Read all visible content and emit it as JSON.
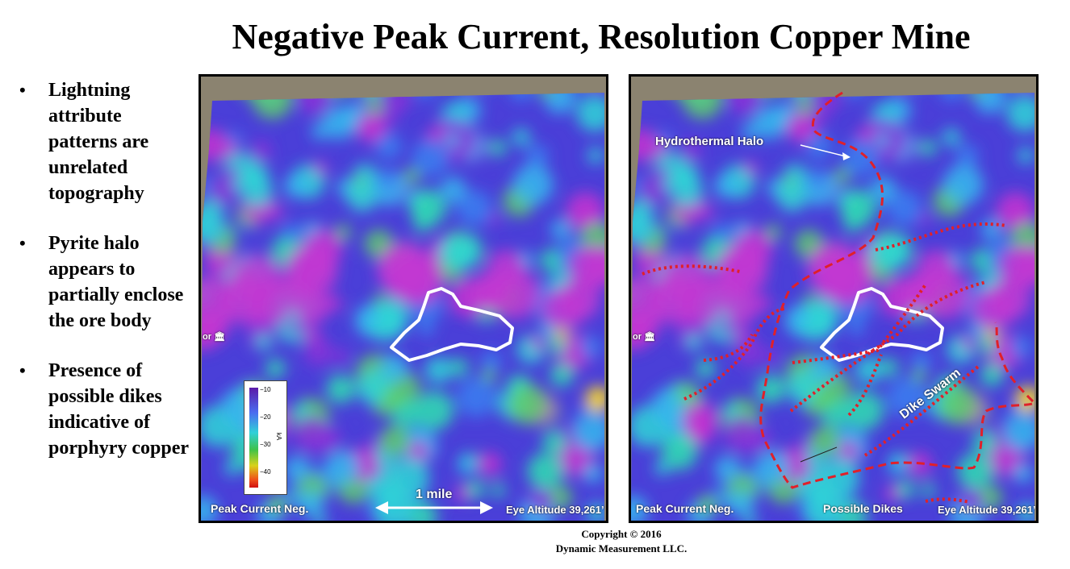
{
  "title": "Negative Peak Current, Resolution Copper Mine",
  "bullets": [
    "Lightning attribute patterns are unrelated topography",
    "Pyrite halo appears to partially enclose the ore body",
    "Presence of possible dikes indicative of porphyry copper"
  ],
  "bullet_glyph": "•",
  "left_map": {
    "label": "Peak Current Neg.",
    "eye_altitude": "Eye Altitude 39,261’",
    "scale_bar": "1 mile",
    "place_marker": "or",
    "legend": {
      "ticks": [
        "−10",
        "−20",
        "−30",
        "−40"
      ],
      "unit": "kA"
    }
  },
  "right_map": {
    "label": "Peak Current Neg.",
    "eye_altitude": "Eye Altitude 39,261’",
    "possible_dikes": "Possible Dikes",
    "hydrothermal_halo": "Hydrothermal Halo",
    "dike_swarm": "Dike Swarm",
    "place_marker": "or"
  },
  "copyright": {
    "line1": "Copyright  © 2016",
    "line2": "Dynamic Measurement LLC."
  },
  "colors": {
    "ore_outline": "#ffffff",
    "halo_line": "#e0202a",
    "dike_line": "#e0202a",
    "heat_base": "#4a3fd8"
  }
}
